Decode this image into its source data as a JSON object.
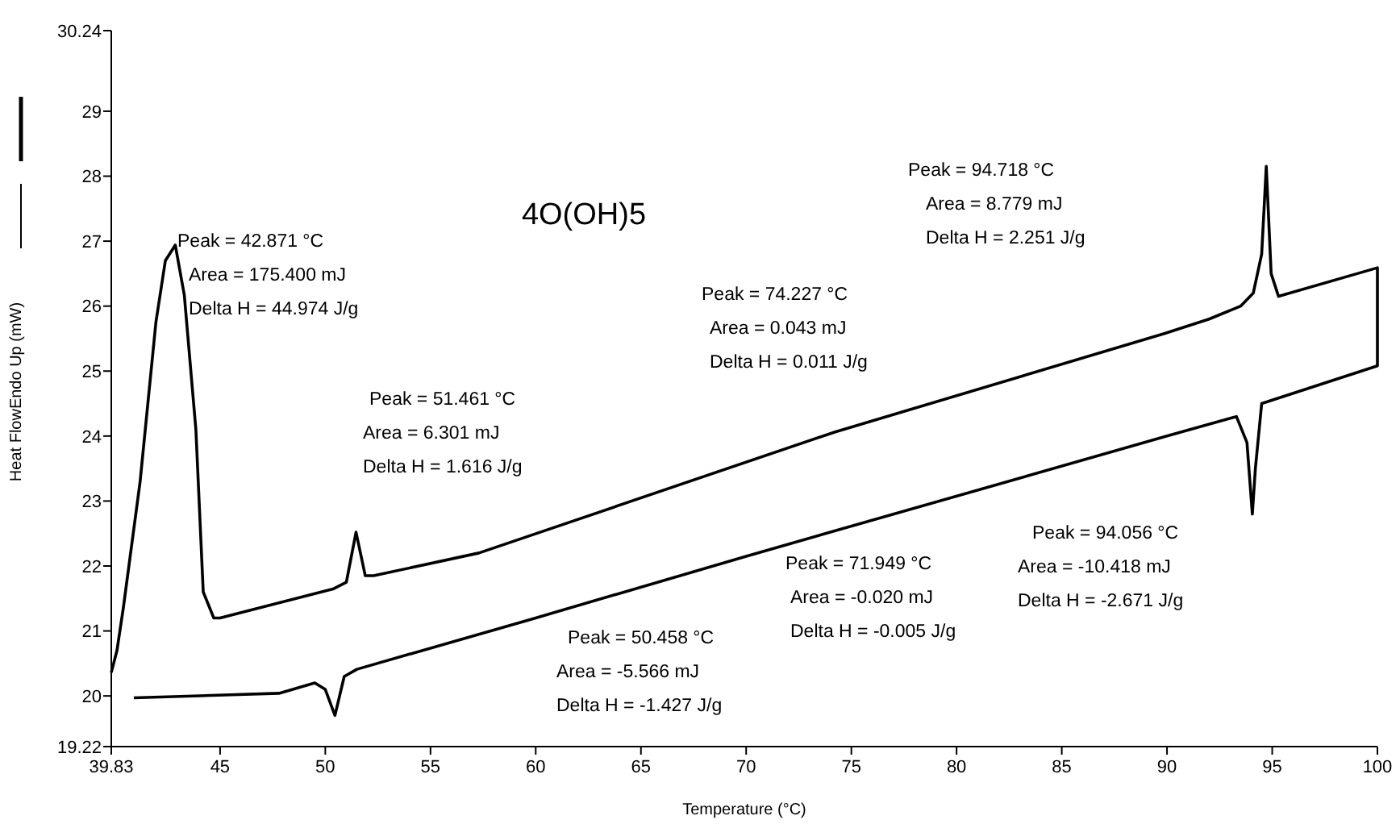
{
  "chart_data": {
    "type": "line",
    "title": "4O(OH)5",
    "xlabel": "Temperature (°C)",
    "ylabel": "Heat FlowEndo Up (mW)",
    "xlim": [
      39.83,
      100
    ],
    "ylim": [
      19.22,
      30.24
    ],
    "xticks": [
      39.83,
      45,
      50,
      55,
      60,
      65,
      70,
      75,
      80,
      85,
      90,
      95,
      100
    ],
    "yticks": [
      19.22,
      20,
      21,
      22,
      23,
      24,
      25,
      26,
      27,
      28,
      29,
      30.24
    ],
    "grid": false,
    "marker": "none",
    "line_style": "solid",
    "series": [
      {
        "color": "#000000",
        "x": [
          39.83,
          40.1,
          40.4,
          41.2,
          41.95,
          42.4,
          42.871,
          43.3,
          43.85,
          44.2,
          44.7,
          45,
          50.4,
          51.0,
          51.461,
          51.9,
          52.3,
          57.3,
          74.2,
          89.9,
          92,
          93.5,
          94.1,
          94.5,
          94.718,
          94.95,
          95.3,
          100,
          100,
          94.5,
          94.2,
          94.056,
          93.8,
          93.3,
          90,
          70,
          60,
          51.5,
          50.9,
          50.458,
          50.0,
          49.5,
          47.8,
          40.9
        ],
        "values": [
          20.36,
          20.7,
          21.35,
          23.3,
          25.75,
          26.7,
          26.94,
          26.17,
          24.1,
          21.6,
          21.2,
          21.2,
          21.65,
          21.75,
          22.52,
          21.85,
          21.85,
          22.2,
          24.06,
          25.58,
          25.8,
          26.0,
          26.2,
          26.8,
          28.15,
          26.5,
          26.15,
          26.59,
          25.08,
          24.5,
          23.5,
          22.8,
          23.9,
          24.3,
          24.0,
          22.15,
          21.2,
          20.41,
          20.3,
          19.7,
          20.1,
          20.2,
          20.04,
          19.97
        ]
      }
    ],
    "annotations": [
      "Peak = 42.871 °C\nArea = 175.400 mJ\nDelta H = 44.974 J/g",
      "Peak = 51.461 °C\nArea = 6.301 mJ\nDelta H = 1.616 J/g",
      "Peak = 74.227 °C\nArea = 0.043 mJ\nDelta H = 0.011 J/g",
      "Peak = 94.718 °C\nArea = 8.779 mJ\nDelta H = 2.251 J/g",
      "Peak = 50.458 °C\nArea = -5.566 mJ\nDelta H = -1.427 J/g",
      "Peak = 71.949 °C\nArea = -0.020 mJ\nDelta H = -0.005 J/g",
      "Peak = 94.056 °C\nArea = -10.418 mJ\nDelta H = -2.671 J/g"
    ]
  }
}
